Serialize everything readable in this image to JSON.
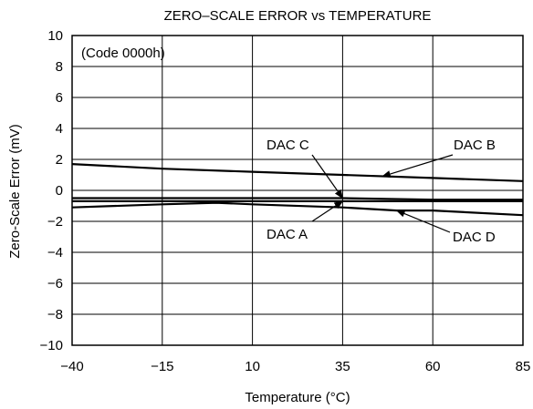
{
  "chart_data": {
    "type": "line",
    "title": "ZERO–SCALE ERROR vs TEMPERATURE",
    "xlabel": "Temperature (°C)",
    "ylabel": "Zero-Scale Error (mV)",
    "xlim": [
      -40,
      85
    ],
    "ylim": [
      -10,
      10
    ],
    "xticks": [
      -40,
      -15,
      10,
      35,
      60,
      85
    ],
    "yticks": [
      10,
      8,
      6,
      4,
      2,
      0,
      -2,
      -4,
      -6,
      -8,
      -10
    ],
    "xtick_labels": [
      "−40",
      "−15",
      "10",
      "35",
      "60",
      "85"
    ],
    "ytick_labels": [
      "10",
      "8",
      "6",
      "4",
      "2",
      "0",
      "−2",
      "−4",
      "−6",
      "−8",
      "−10"
    ],
    "grid": true,
    "note": "(Code 0000h)",
    "series": [
      {
        "name": "DAC B",
        "x": [
          -40,
          -15,
          10,
          35,
          60,
          85
        ],
        "y": [
          1.7,
          1.4,
          1.2,
          1.0,
          0.8,
          0.6
        ]
      },
      {
        "name": "DAC C",
        "x": [
          -40,
          -15,
          10,
          35,
          60,
          85
        ],
        "y": [
          -0.5,
          -0.5,
          -0.5,
          -0.5,
          -0.6,
          -0.6
        ]
      },
      {
        "name": "DAC A",
        "x": [
          -40,
          -15,
          10,
          35,
          60,
          85
        ],
        "y": [
          -0.7,
          -0.7,
          -0.7,
          -0.7,
          -0.7,
          -0.7
        ]
      },
      {
        "name": "DAC D",
        "x": [
          -40,
          -15,
          0,
          10,
          35,
          50,
          60,
          85
        ],
        "y": [
          -1.1,
          -0.9,
          -0.8,
          -0.9,
          -1.1,
          -1.3,
          -1.3,
          -1.6
        ]
      }
    ],
    "annotations": [
      {
        "text": "DAC C",
        "series": "DAC C"
      },
      {
        "text": "DAC B",
        "series": "DAC B"
      },
      {
        "text": "DAC A",
        "series": "DAC A"
      },
      {
        "text": "DAC D",
        "series": "DAC D"
      }
    ]
  }
}
